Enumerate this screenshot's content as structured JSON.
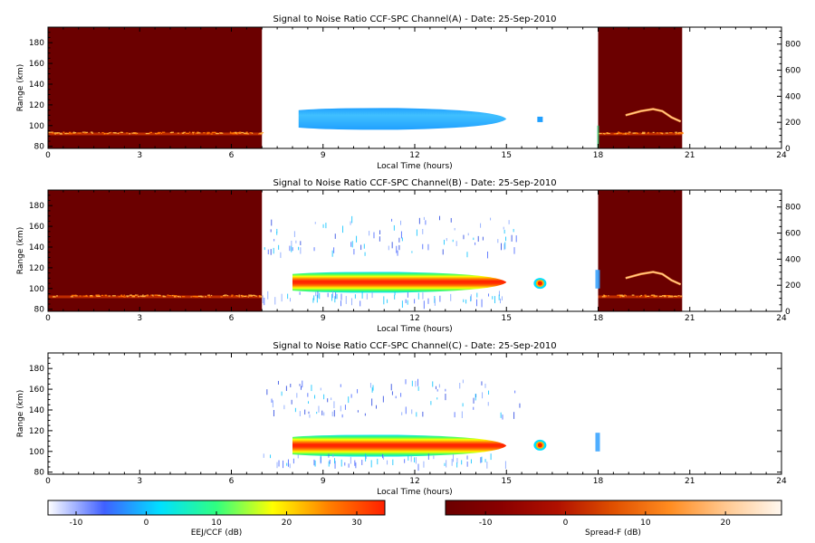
{
  "chart_data": [
    {
      "type": "heatmap",
      "title": "Signal to Noise Ratio CCF-SPC Channel(A) - Date: 25-Sep-2010",
      "xlabel": "Local Time (hours)",
      "ylabel": "Range (km)",
      "xlim": [
        0,
        24
      ],
      "ylim": [
        78,
        195
      ],
      "x_ticks": [
        0,
        3,
        6,
        9,
        12,
        15,
        18,
        21,
        24
      ],
      "y_ticks": [
        80,
        100,
        120,
        140,
        160,
        180
      ],
      "right_ylim": [
        0,
        930
      ],
      "right_y_ticks": [
        0,
        200,
        400,
        600,
        800
      ],
      "spread_f_blocks": [
        [
          0,
          7.0
        ],
        [
          18.0,
          20.75
        ]
      ],
      "spread_f_layer_range_km": 92,
      "eej_echo": {
        "start_h": 8.2,
        "end_h": 15.0,
        "range_km": [
          96,
          117
        ],
        "peak_db": 0
      },
      "isolated_echoes": [
        {
          "time_h": 16.1,
          "range_km": 106,
          "db": 0
        }
      ]
    },
    {
      "type": "heatmap",
      "title": "Signal to Noise Ratio CCF-SPC Channel(B) - Date: 25-Sep-2010",
      "xlabel": "Local Time (hours)",
      "ylabel": "Range (km)",
      "xlim": [
        0,
        24
      ],
      "ylim": [
        78,
        195
      ],
      "x_ticks": [
        0,
        3,
        6,
        9,
        12,
        15,
        18,
        21,
        24
      ],
      "y_ticks": [
        80,
        100,
        120,
        140,
        160,
        180
      ],
      "right_ylim": [
        0,
        930
      ],
      "right_y_ticks": [
        0,
        200,
        400,
        600,
        800
      ],
      "spread_f_blocks": [
        [
          0,
          7.0
        ],
        [
          18.0,
          20.75
        ]
      ],
      "spread_f_layer_range_km": 92,
      "eej_echo": {
        "start_h": 8.0,
        "end_h": 15.0,
        "range_km": [
          96,
          116
        ],
        "peak_db": 30
      },
      "isolated_echoes": [
        {
          "time_h": 16.1,
          "range_km": 105,
          "db": 25
        }
      ]
    },
    {
      "type": "heatmap",
      "title": "Signal to Noise Ratio CCF-SPC Channel(C) - Date: 25-Sep-2010",
      "xlabel": "Local Time (hours)",
      "ylabel": "Range (km)",
      "xlim": [
        0,
        24
      ],
      "ylim": [
        78,
        195
      ],
      "x_ticks": [
        0,
        3,
        6,
        9,
        12,
        15,
        18,
        21,
        24
      ],
      "y_ticks": [
        80,
        100,
        120,
        140,
        160,
        180
      ],
      "eej_echo": {
        "start_h": 8.0,
        "end_h": 15.0,
        "range_km": [
          95,
          116
        ],
        "peak_db": 30
      },
      "isolated_echoes": [
        {
          "time_h": 16.1,
          "range_km": 106,
          "db": 25
        }
      ]
    }
  ],
  "colorbars": [
    {
      "label": "EEJ/CCF (dB)",
      "min": -14,
      "max": 34,
      "ticks": [
        -10,
        0,
        10,
        20,
        30
      ],
      "colors": [
        "#ffffff",
        "#4060ff",
        "#00e0ff",
        "#30ff80",
        "#ffff00",
        "#ff8000",
        "#ff2000"
      ]
    },
    {
      "label": "Spread-F (dB)",
      "min": -15,
      "max": 27,
      "ticks": [
        -10,
        0,
        10,
        20
      ],
      "colors": [
        "#6b0000",
        "#8a0000",
        "#b01000",
        "#e05000",
        "#ff8c20",
        "#ffc890",
        "#fff8f0"
      ]
    }
  ]
}
